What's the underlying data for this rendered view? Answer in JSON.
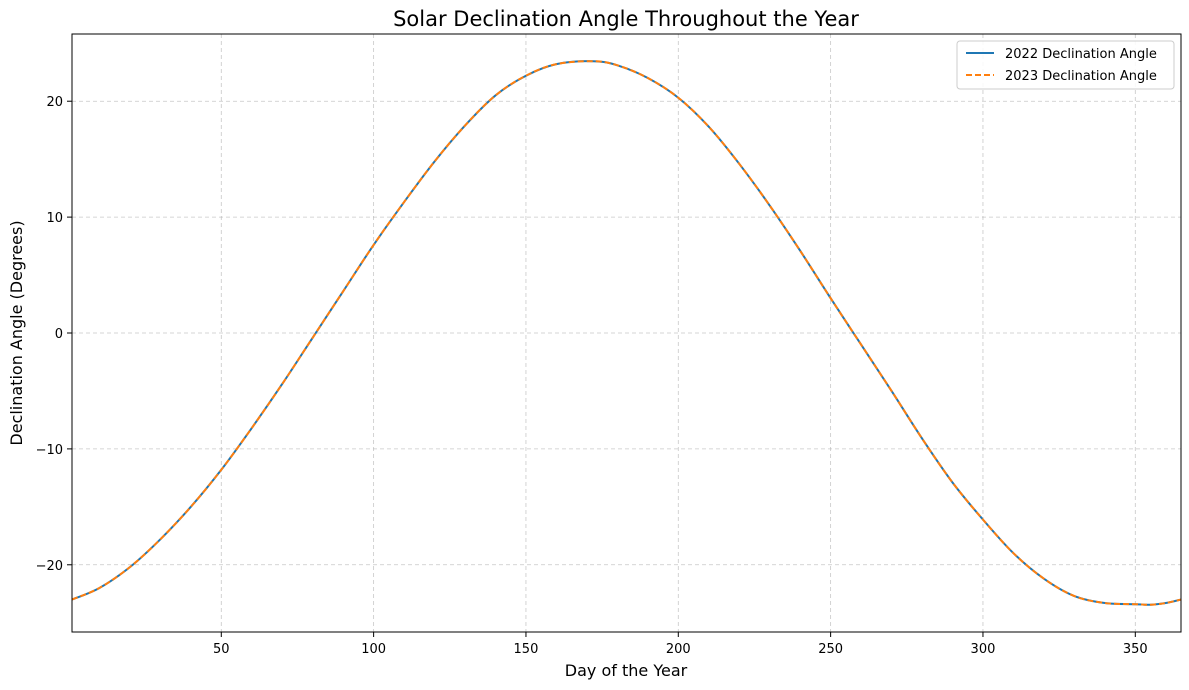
{
  "chart_data": {
    "type": "line",
    "title": "Solar Declination Angle Throughout the Year",
    "xlabel": "Day of the Year",
    "ylabel": "Declination Angle (Degrees)",
    "xlim": [
      1,
      365
    ],
    "ylim": [
      -25.8,
      25.8
    ],
    "xticks": [
      50,
      100,
      150,
      200,
      250,
      300,
      350
    ],
    "yticks": [
      -20,
      -10,
      0,
      10,
      20
    ],
    "ytick_labels": [
      "−20",
      "−10",
      "0",
      "10",
      "20"
    ],
    "grid": true,
    "legend_position": "top-right",
    "x": [
      1,
      10,
      20,
      30,
      40,
      50,
      60,
      70,
      80,
      90,
      100,
      110,
      120,
      130,
      140,
      150,
      160,
      172,
      180,
      190,
      200,
      210,
      220,
      230,
      240,
      250,
      260,
      270,
      280,
      290,
      300,
      310,
      320,
      330,
      340,
      350,
      355,
      360,
      365
    ],
    "series": [
      {
        "name": "2022 Declination Angle",
        "color": "#1f77b4",
        "style": "solid",
        "values": [
          -23.0,
          -22.0,
          -20.2,
          -17.8,
          -15.0,
          -11.8,
          -8.2,
          -4.4,
          -0.4,
          3.6,
          7.6,
          11.3,
          14.8,
          17.9,
          20.5,
          22.2,
          23.2,
          23.45,
          23.1,
          22.0,
          20.3,
          17.8,
          14.6,
          11.0,
          7.1,
          3.0,
          -1.0,
          -5.0,
          -9.1,
          -12.9,
          -16.1,
          -19.0,
          -21.2,
          -22.7,
          -23.3,
          -23.4,
          -23.45,
          -23.3,
          -23.0
        ]
      },
      {
        "name": "2023 Declination Angle",
        "color": "#ff7f0e",
        "style": "dashed",
        "values": [
          -23.0,
          -22.0,
          -20.2,
          -17.8,
          -15.0,
          -11.8,
          -8.2,
          -4.4,
          -0.4,
          3.6,
          7.6,
          11.3,
          14.8,
          17.9,
          20.5,
          22.2,
          23.2,
          23.45,
          23.1,
          22.0,
          20.3,
          17.8,
          14.6,
          11.0,
          7.1,
          3.0,
          -1.0,
          -5.0,
          -9.1,
          -12.9,
          -16.1,
          -19.0,
          -21.2,
          -22.7,
          -23.3,
          -23.4,
          -23.45,
          -23.3,
          -23.0
        ]
      }
    ]
  }
}
